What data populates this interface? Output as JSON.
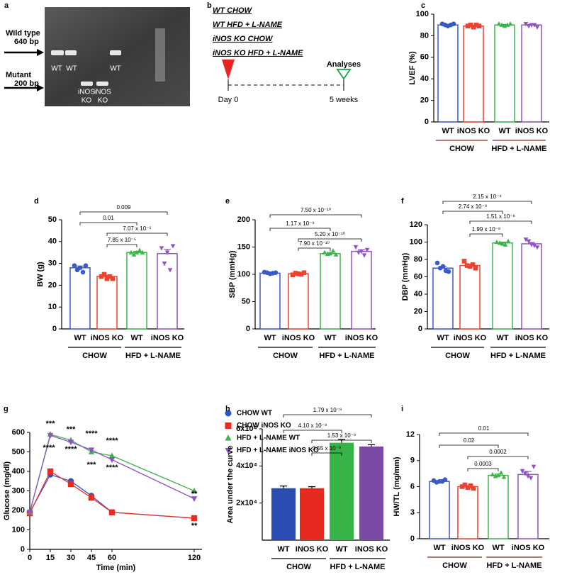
{
  "panel_a": {
    "label": "a",
    "arrow_labels": [
      [
        "Wild type",
        "640 bp"
      ],
      [
        "Mutant",
        "200 bp"
      ]
    ],
    "lanes": [
      [
        "WT"
      ],
      [
        "WT"
      ],
      [
        "iNOS",
        "KO"
      ],
      [
        "iNOS",
        "KO"
      ],
      [
        "WT"
      ]
    ]
  },
  "panel_b": {
    "label": "b",
    "groups": [
      "WT CHOW",
      "WT HFD + L-NAME",
      "iNOS KO CHOW",
      "iNOS KO HFD + L-NAME"
    ],
    "endpoint": "Analyses",
    "start": "Day 0",
    "end": "5 weeks"
  },
  "chart_data": [
    {
      "type": "bar",
      "label": "c",
      "y_label": "LVEF (%)",
      "categories": [
        "WT",
        "iNOS KO",
        "WT",
        "iNOS KO"
      ],
      "groups": [
        "CHOW",
        "HFD + L-NAME"
      ],
      "group_line_color": "#8b2a1a",
      "colors": [
        "#3a5bc7",
        "#ef4130",
        "#3db54a",
        "#8e54c2"
      ],
      "markers": [
        "circle",
        "square",
        "triangle",
        "triangle-down"
      ],
      "filled": false,
      "values": [
        90,
        89,
        90,
        90
      ],
      "errors": [
        0.5,
        0.5,
        0.5,
        0.6
      ],
      "points": [
        [
          91,
          90,
          89,
          90,
          91
        ],
        [
          89,
          90,
          88,
          90,
          89
        ],
        [
          91,
          90,
          89,
          90,
          91
        ],
        [
          91,
          89,
          90,
          90,
          88
        ]
      ],
      "ylim": [
        0,
        100
      ],
      "yticks": [
        0,
        20,
        40,
        60,
        80,
        100
      ],
      "comparisons": []
    },
    {
      "type": "bar",
      "label": "d",
      "y_label": "BW (g)",
      "categories": [
        "WT",
        "iNOS KO",
        "WT",
        "iNOS KO"
      ],
      "groups": [
        "CHOW",
        "HFD + L-NAME"
      ],
      "group_line_color": "#000000",
      "colors": [
        "#3a5bc7",
        "#ef4130",
        "#3db54a",
        "#8e54c2"
      ],
      "markers": [
        "circle",
        "square",
        "triangle",
        "triangle-down"
      ],
      "filled": false,
      "values": [
        28,
        24,
        35,
        34.5
      ],
      "errors": [
        0.8,
        0.6,
        0.5,
        2
      ],
      "points": [
        [
          29,
          27,
          28,
          26,
          29
        ],
        [
          24,
          25,
          23,
          24,
          23
        ],
        [
          35,
          34,
          35,
          36,
          35
        ],
        [
          37,
          30,
          35,
          27,
          38
        ]
      ],
      "ylim": [
        0,
        50
      ],
      "yticks": [
        0,
        10,
        20,
        30,
        40,
        50
      ],
      "comparisons": [
        "0.009",
        "0.01",
        "7.07 x 10⁻⁵",
        "7.85 x 10⁻⁵"
      ]
    },
    {
      "type": "bar",
      "label": "e",
      "y_label": "SBP (mmHg)",
      "categories": [
        "WT",
        "iNOS KO",
        "WT",
        "iNOS KO"
      ],
      "groups": [
        "CHOW",
        "HFD + L-NAME"
      ],
      "group_line_color": "#000000",
      "colors": [
        "#3a5bc7",
        "#ef4130",
        "#3db54a",
        "#8e54c2"
      ],
      "markers": [
        "circle",
        "square",
        "triangle",
        "triangle-down"
      ],
      "filled": false,
      "values": [
        102,
        101,
        138,
        142
      ],
      "errors": [
        1,
        1,
        2,
        3
      ],
      "points": [
        [
          104,
          103,
          101,
          102,
          103
        ],
        [
          99,
          102,
          101,
          100,
          103
        ],
        [
          140,
          137,
          138,
          143,
          136
        ],
        [
          150,
          140,
          142,
          135,
          145
        ]
      ],
      "ylim": [
        0,
        200
      ],
      "yticks": [
        0,
        50,
        100,
        150,
        200
      ],
      "comparisons": [
        "7.50 x 10⁻¹⁰",
        "1.17 x 10⁻⁹",
        "5.20 x 10⁻¹⁰",
        "7.90 x 10⁻¹⁰"
      ]
    },
    {
      "type": "bar",
      "label": "f",
      "y_label": "DBP (mmHg)",
      "categories": [
        "WT",
        "iNOS KO",
        "WT",
        "iNOS KO"
      ],
      "groups": [
        "CHOW",
        "HFD + L-NAME"
      ],
      "group_line_color": "#000000",
      "colors": [
        "#3a5bc7",
        "#ef4130",
        "#3db54a",
        "#8e54c2"
      ],
      "markers": [
        "circle",
        "square",
        "triangle",
        "triangle-down"
      ],
      "filled": false,
      "values": [
        70,
        73,
        99,
        98
      ],
      "errors": [
        2,
        1.5,
        1,
        1.5
      ],
      "points": [
        [
          76,
          70,
          72,
          67,
          66
        ],
        [
          78,
          73,
          72,
          74,
          70
        ],
        [
          100,
          99,
          98,
          97,
          101
        ],
        [
          103,
          101,
          97,
          96,
          94
        ]
      ],
      "ylim": [
        0,
        120
      ],
      "yticks": [
        0,
        20,
        40,
        60,
        80,
        100,
        120
      ],
      "comparisons": [
        "2.15 x 10⁻⁹",
        "2.74 x 10⁻⁹",
        "1.51 x 10⁻⁸",
        "1.99 x 10⁻⁸"
      ]
    },
    {
      "type": "line",
      "label": "g",
      "y_label": "Glucose (mg/dl)",
      "x_label": "Time (min)",
      "x": [
        0,
        15,
        30,
        45,
        60,
        120
      ],
      "xlim": [
        0,
        120
      ],
      "xticks": [
        0,
        15,
        30,
        45,
        60,
        120
      ],
      "ylim": [
        0,
        600
      ],
      "yticks": [
        0,
        100,
        200,
        300,
        400,
        500,
        600
      ],
      "series": [
        {
          "name": "CHOW WT",
          "color": "#2f55c9",
          "marker": "circle",
          "values": [
            190,
            383,
            350,
            275,
            190,
            160
          ]
        },
        {
          "name": "CHOW iNOS KO",
          "color": "#ee2a1f",
          "marker": "square",
          "values": [
            185,
            400,
            335,
            265,
            190,
            160
          ]
        },
        {
          "name": "HFD + L-NAME WT",
          "color": "#3db54a",
          "marker": "triangle",
          "values": [
            190,
            590,
            560,
            500,
            480,
            300
          ]
        },
        {
          "name": "HFD + L-NAME iNOS KO",
          "color": "#8e54c2",
          "marker": "triangle-down",
          "values": [
            190,
            585,
            550,
            510,
            460,
            260
          ]
        }
      ],
      "annotations": [
        "***",
        "****",
        "***",
        "****",
        "****",
        "***",
        "****",
        "****",
        "**",
        "**"
      ]
    },
    {
      "type": "bar",
      "label": "h",
      "y_label": "Area under the curve",
      "categories": [
        "WT",
        "iNOS KO",
        "WT",
        "iNOS KO"
      ],
      "groups": [
        "CHOW",
        "HFD + L-NAME"
      ],
      "group_line_color": "#000000",
      "colors": [
        "#2a4cb3",
        "#e62a20",
        "#37b448",
        "#7b4aa6"
      ],
      "markers": [],
      "filled": true,
      "values": [
        28000,
        28000,
        52500,
        50500
      ],
      "errors": [
        1200,
        800,
        1800,
        1000
      ],
      "points": [],
      "ylim": [
        0,
        60000
      ],
      "yticks": [
        {
          "value": 20000,
          "label": "2x10⁴"
        },
        {
          "value": 40000,
          "label": "4x10⁴"
        },
        {
          "value": 60000,
          "label": "6x10⁴"
        }
      ],
      "comparisons": [
        "1.79 x 10⁻⁸",
        "4.10 x 10⁻⁹",
        "1.53 x 10⁻⁸",
        "3.55 x 10⁻⁹"
      ]
    },
    {
      "type": "bar",
      "label": "i",
      "y_label": "HW/TL (mg/mm)",
      "categories": [
        "WT",
        "iNOS KO",
        "WT",
        "iNOS KO"
      ],
      "groups": [
        "CHOW",
        "HFD + L-NAME"
      ],
      "group_line_color": "#8b2a1a",
      "colors": [
        "#3a5bc7",
        "#ef4130",
        "#3db54a",
        "#8e54c2"
      ],
      "markers": [
        "circle",
        "square",
        "triangle",
        "triangle-down"
      ],
      "filled": false,
      "values": [
        6.6,
        6.0,
        7.3,
        7.4
      ],
      "errors": [
        0.1,
        0.1,
        0.15,
        0.35
      ],
      "points": [
        [
          6.7,
          6.5,
          6.6,
          6.6,
          6.8
        ],
        [
          6.0,
          6.2,
          5.9,
          6.1,
          5.8
        ],
        [
          7.4,
          7.2,
          7.3,
          7.6,
          7.1
        ],
        [
          7.8,
          7.5,
          7.2,
          7.0,
          8.3
        ]
      ],
      "ylim": [
        0,
        12
      ],
      "yticks": [
        0,
        3,
        6,
        9,
        12
      ],
      "comparisons": [
        "0.01",
        "0.02",
        "0.0002",
        "0.0003"
      ]
    }
  ]
}
